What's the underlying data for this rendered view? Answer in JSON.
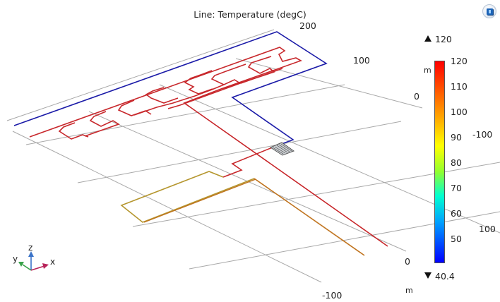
{
  "plot": {
    "title": "Line: Temperature (degC)"
  },
  "axes": {
    "y_ticks": [
      "200",
      "100",
      "0",
      "-100"
    ],
    "x_ticks": [
      "100",
      "0",
      "-100"
    ],
    "units": [
      "m",
      "m"
    ]
  },
  "legend": {
    "max_label": "120",
    "min_label": "40.4",
    "ticks": [
      "120",
      "110",
      "100",
      "90",
      "80",
      "70",
      "60",
      "50"
    ],
    "range": [
      40.4,
      120
    ],
    "colors": {
      "hot": "#c8282c",
      "cold": "#1b1ba8",
      "warm_yellow": "#b5962e",
      "warm_orange": "#c0741f"
    }
  },
  "triad": {
    "z": "z",
    "y": "y",
    "x": "x"
  },
  "icons": {
    "render": "render-mode-icon"
  }
}
